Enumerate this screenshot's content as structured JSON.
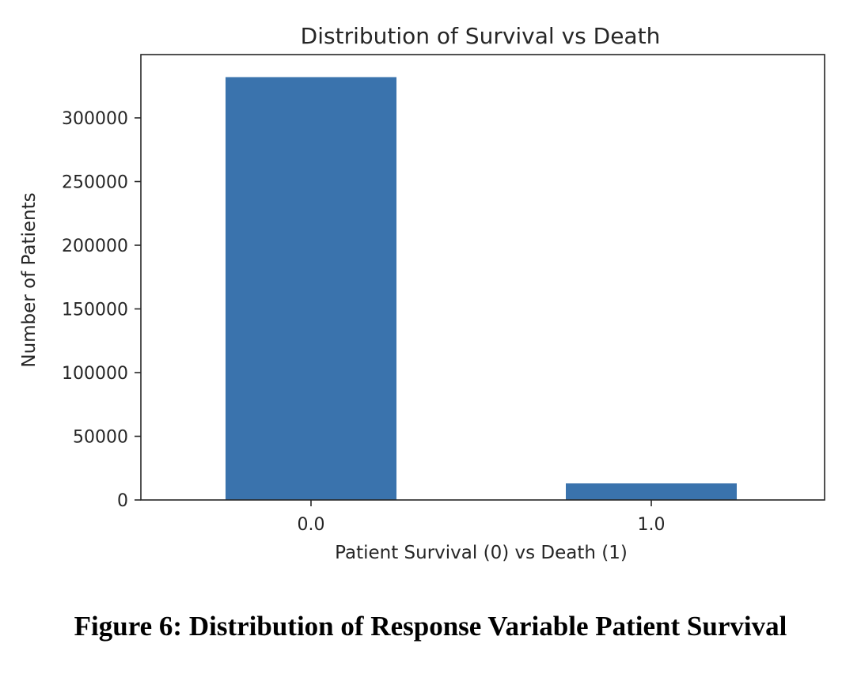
{
  "chart_data": {
    "type": "bar",
    "title": "Distribution of Survival vs Death",
    "xlabel": "Patient Survival (0) vs Death (1)",
    "ylabel": "Number of Patients",
    "categories": [
      "0.0",
      "1.0"
    ],
    "values": [
      332000,
      13000
    ],
    "ylim": [
      0,
      350000
    ],
    "yticks": [
      0,
      50000,
      100000,
      150000,
      200000,
      250000,
      300000
    ],
    "ytick_labels": [
      "0",
      "50000",
      "100000",
      "150000",
      "200000",
      "250000",
      "300000"
    ],
    "grid": false,
    "legend": "none",
    "colors": {
      "bar": "#3a73ad",
      "axes": "#262626"
    }
  },
  "caption": "Figure 6: Distribution of Response Variable Patient Survival"
}
